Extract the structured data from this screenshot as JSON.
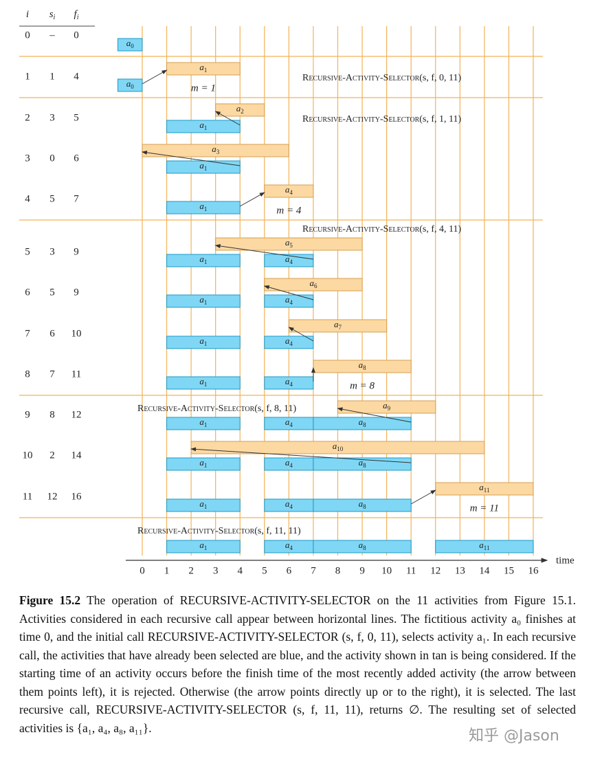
{
  "header": [
    {
      "main": "i"
    },
    {
      "main": "s",
      "sub": "i"
    },
    {
      "main": "f",
      "sub": "i"
    }
  ],
  "symbol": "a",
  "rows": [
    {
      "i": 0,
      "s": "–",
      "f": 0,
      "selected": [
        0
      ]
    },
    {
      "i": 1,
      "s": 1,
      "f": 4,
      "selected": [
        0
      ],
      "note": "m = 1",
      "call": {
        "name": "Recursive-Activity-Selector",
        "args": "(s, f, 0, 11)"
      }
    },
    {
      "i": 2,
      "s": 3,
      "f": 5,
      "selected": [
        1
      ],
      "call": {
        "name": "Recursive-Activity-Selector",
        "args": "(s, f, 1, 11)"
      }
    },
    {
      "i": 3,
      "s": 0,
      "f": 6,
      "selected": [
        1
      ]
    },
    {
      "i": 4,
      "s": 5,
      "f": 7,
      "selected": [
        1
      ],
      "note": "m = 4"
    },
    {
      "i": 5,
      "s": 3,
      "f": 9,
      "selected": [
        1,
        4
      ],
      "call": {
        "name": "Recursive-Activity-Selector",
        "args": "(s, f, 4, 11)"
      }
    },
    {
      "i": 6,
      "s": 5,
      "f": 9,
      "selected": [
        1,
        4
      ]
    },
    {
      "i": 7,
      "s": 6,
      "f": 10,
      "selected": [
        1,
        4
      ]
    },
    {
      "i": 8,
      "s": 7,
      "f": 11,
      "selected": [
        1,
        4
      ],
      "note": "m = 8"
    },
    {
      "i": 9,
      "s": 8,
      "f": 12,
      "selected": [
        1,
        4,
        8
      ],
      "call": {
        "name": "Recursive-Activity-Selector",
        "args": "(s, f, 8, 11)"
      }
    },
    {
      "i": 10,
      "s": 2,
      "f": 14,
      "selected": [
        1,
        4,
        8
      ]
    },
    {
      "i": 11,
      "s": 12,
      "f": 16,
      "selected": [
        1,
        4,
        8
      ],
      "note": "m = 11"
    }
  ],
  "final": {
    "selected": [
      1,
      4,
      8,
      11
    ],
    "call": {
      "name": "Recursive-Activity-Selector",
      "args": "(s, f, 11, 11)"
    }
  },
  "axis": {
    "ticks": [
      0,
      1,
      2,
      3,
      4,
      5,
      6,
      7,
      8,
      9,
      10,
      11,
      12,
      13,
      14,
      15,
      16
    ],
    "label": "time"
  },
  "caption": {
    "label": "Figure 15.2",
    "text": "The operation of RECURSIVE-ACTIVITY-SELECTOR on the 11 activities from Figure 15.1. Activities considered in each recursive call appear between horizontal lines. The fictitious activity a₀ finishes at time 0, and the initial call RECURSIVE-ACTIVITY-SELECTOR (s, f, 0, 11), selects activity a₁. In each recursive call, the activities that have already been selected are blue, and the activity shown in tan is being considered. If the starting time of an activity occurs before the finish time of the most recently added activity (the arrow between them points left), it is rejected. Otherwise (the arrow points directly up or to the right), it is selected. The last recursive call, RECURSIVE-ACTIVITY-SELECTOR (s, f, 11, 11), returns ∅. The resulting set of selected activities is {a₁, a₄, a₈, a₁₁}."
  },
  "watermark": "知乎 @Jason"
}
